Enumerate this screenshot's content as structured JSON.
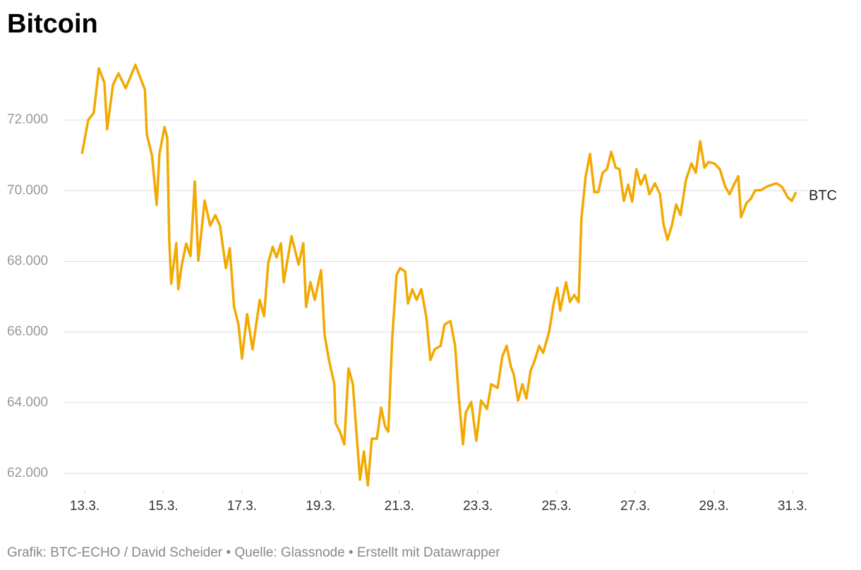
{
  "chart_data": {
    "type": "line",
    "title": "Bitcoin",
    "footer": "Grafik: BTC-ECHO / David Scheider • Quelle: Glassnode • Erstellt mit Datawrapper",
    "x": [
      12.93,
      13.09,
      13.23,
      13.36,
      13.5,
      13.57,
      13.72,
      13.86,
      14.04,
      14.29,
      14.53,
      14.58,
      14.71,
      14.83,
      14.9,
      15.03,
      15.1,
      15.15,
      15.2,
      15.33,
      15.38,
      15.47,
      15.58,
      15.69,
      15.8,
      15.89,
      16.05,
      16.19,
      16.32,
      16.44,
      16.59,
      16.69,
      16.8,
      16.91,
      17.0,
      17.13,
      17.27,
      17.45,
      17.56,
      17.67,
      17.78,
      17.88,
      17.99,
      18.06,
      18.26,
      18.44,
      18.56,
      18.63,
      18.74,
      18.85,
      19.01,
      19.1,
      19.21,
      19.35,
      19.38,
      19.49,
      19.6,
      19.71,
      19.82,
      19.92,
      20.0,
      20.1,
      20.2,
      20.3,
      20.43,
      20.54,
      20.64,
      20.72,
      20.82,
      20.93,
      21.02,
      21.15,
      21.22,
      21.33,
      21.44,
      21.56,
      21.69,
      21.79,
      21.9,
      22.05,
      22.15,
      22.3,
      22.42,
      22.51,
      22.62,
      22.69,
      22.83,
      22.96,
      23.08,
      23.23,
      23.34,
      23.5,
      23.62,
      23.73,
      23.84,
      23.91,
      24.02,
      24.13,
      24.23,
      24.34,
      24.45,
      24.56,
      24.66,
      24.81,
      24.92,
      25.02,
      25.09,
      25.24,
      25.34,
      25.45,
      25.56,
      25.63,
      25.74,
      25.85,
      25.96,
      26.06,
      26.17,
      26.28,
      26.39,
      26.5,
      26.6,
      26.71,
      26.82,
      26.92,
      27.03,
      27.14,
      27.25,
      27.36,
      27.5,
      27.63,
      27.72,
      27.82,
      27.93,
      28.04,
      28.15,
      28.29,
      28.43,
      28.54,
      28.65,
      28.76,
      28.86,
      29.01,
      29.15,
      29.29,
      29.4,
      29.51,
      29.62,
      29.69,
      29.83,
      29.94,
      30.05,
      30.19,
      30.34,
      30.48,
      30.59,
      30.73,
      30.88,
      30.98,
      31.09
    ],
    "series": [
      {
        "name": "BTC",
        "color": "#f2a900",
        "values": [
          71040,
          72000,
          72200,
          73460,
          73060,
          71740,
          73000,
          73320,
          72900,
          73560,
          72860,
          71600,
          71000,
          69600,
          71040,
          71800,
          71500,
          68600,
          67370,
          68510,
          67210,
          67900,
          68500,
          68150,
          70260,
          68020,
          69720,
          69010,
          69310,
          69010,
          67810,
          68370,
          66710,
          66210,
          65250,
          66510,
          65510,
          66910,
          66450,
          67970,
          68410,
          68110,
          68510,
          67410,
          68710,
          67910,
          68510,
          66710,
          67410,
          66910,
          67750,
          65920,
          65220,
          64520,
          63420,
          63180,
          62820,
          64970,
          64520,
          63020,
          61820,
          62620,
          61660,
          62980,
          62980,
          63860,
          63320,
          63180,
          65810,
          67610,
          67810,
          67710,
          66810,
          67210,
          66910,
          67210,
          66410,
          65210,
          65510,
          65610,
          66210,
          66310,
          65610,
          64210,
          62820,
          63720,
          64020,
          62920,
          64060,
          63820,
          64520,
          64420,
          65310,
          65610,
          65010,
          64810,
          64060,
          64520,
          64120,
          64910,
          65210,
          65610,
          65410,
          66010,
          66770,
          67250,
          66610,
          67410,
          66850,
          67050,
          66850,
          69210,
          70410,
          71040,
          69960,
          69960,
          70510,
          70610,
          71100,
          70650,
          70610,
          69710,
          70170,
          69690,
          70610,
          70170,
          70450,
          69900,
          70210,
          69900,
          69050,
          68610,
          69010,
          69610,
          69310,
          70310,
          70770,
          70510,
          71400,
          70650,
          70810,
          70770,
          70610,
          70110,
          69900,
          70170,
          70410,
          69250,
          69650,
          69770,
          70010,
          70010,
          70110,
          70170,
          70210,
          70110,
          69810,
          69710,
          69960
        ]
      }
    ],
    "xlim": [
      13,
      31
    ],
    "xticks": [
      {
        "value": 13,
        "label": "13.3."
      },
      {
        "value": 15,
        "label": "15.3."
      },
      {
        "value": 17,
        "label": "17.3."
      },
      {
        "value": 19,
        "label": "19.3."
      },
      {
        "value": 21,
        "label": "21.3."
      },
      {
        "value": 23,
        "label": "23.3."
      },
      {
        "value": 25,
        "label": "25.3."
      },
      {
        "value": 27,
        "label": "27.3."
      },
      {
        "value": 29,
        "label": "29.3."
      },
      {
        "value": 31,
        "label": "31.3."
      }
    ],
    "ylim": [
      61420,
      73700
    ],
    "yticks": [
      {
        "value": 62000,
        "label": "62.000"
      },
      {
        "value": 64000,
        "label": "64.000"
      },
      {
        "value": 66000,
        "label": "66.000"
      },
      {
        "value": 68000,
        "label": "68.000"
      },
      {
        "value": 70000,
        "label": "70.000"
      },
      {
        "value": 72000,
        "label": "72.000"
      }
    ],
    "grid": true
  }
}
